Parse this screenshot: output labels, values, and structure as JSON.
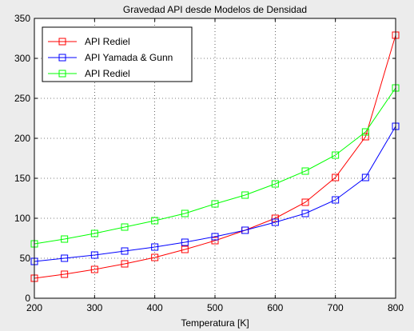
{
  "chart_data": {
    "type": "line",
    "title": "Gravedad API desde Modelos de Densidad",
    "xlabel": "Temperatura [K]",
    "ylabel": "",
    "xlim": [
      200,
      800
    ],
    "ylim": [
      0,
      350
    ],
    "xticks": [
      200,
      300,
      400,
      500,
      600,
      700,
      800
    ],
    "yticks": [
      0,
      50,
      100,
      150,
      200,
      250,
      300,
      350
    ],
    "grid": true,
    "legend_position": "top-left",
    "marker": "square",
    "x": [
      200,
      250,
      300,
      350,
      400,
      450,
      500,
      550,
      600,
      650,
      700,
      750,
      800
    ],
    "series": [
      {
        "name": "API Rediel",
        "color": "#ff0000",
        "values": [
          25,
          30,
          36,
          43,
          51,
          61,
          72,
          85,
          100,
          120,
          151,
          202,
          329
        ]
      },
      {
        "name": "API Yamada & Gunn",
        "color": "#0000ff",
        "values": [
          46,
          50,
          54,
          59,
          64,
          70,
          77,
          85,
          95,
          106,
          123,
          151,
          215
        ]
      },
      {
        "name": "API Rediel",
        "color": "#00ff00",
        "values": [
          68,
          74,
          81,
          89,
          97,
          106,
          118,
          129,
          143,
          159,
          179,
          208,
          263
        ]
      }
    ]
  }
}
